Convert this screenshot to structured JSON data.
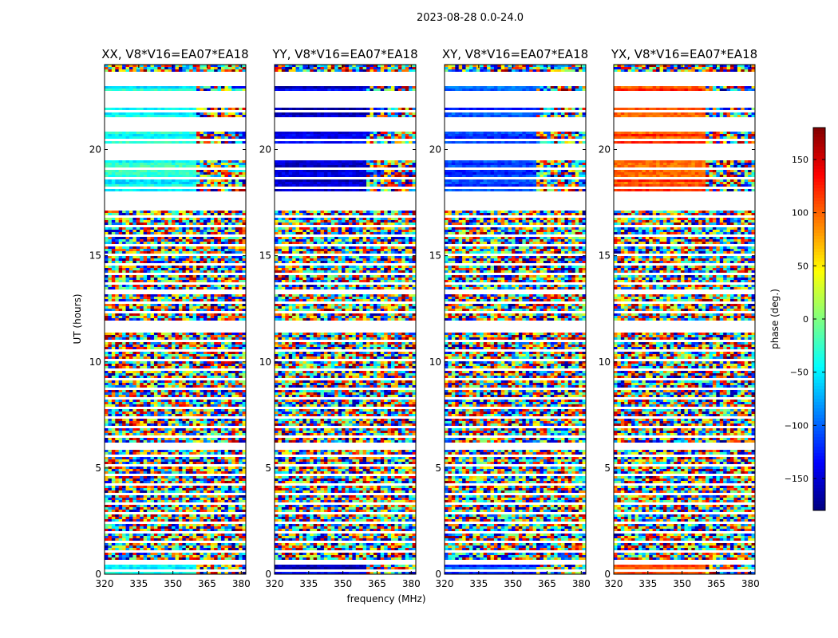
{
  "figure_title": "2023-08-28 0.0-24.0",
  "chart_data": {
    "type": "heatmap",
    "xlabel": "frequency (MHz)",
    "ylabel": "UT (hours)",
    "xlim": [
      320,
      382
    ],
    "ylim": [
      0,
      24
    ],
    "x_ticks": [
      320,
      335,
      350,
      365,
      380
    ],
    "y_ticks": [
      0,
      5,
      10,
      15,
      20
    ],
    "panels": [
      {
        "title": "XX, V8*V16=EA07*EA18",
        "calibrator_phase": -40
      },
      {
        "title": "YY, V8*V16=EA07*EA18",
        "calibrator_phase": -150
      },
      {
        "title": "XY, V8*V16=EA07*EA18",
        "calibrator_phase": -110
      },
      {
        "title": "YX, V8*V16=EA07*EA18",
        "calibrator_phase": 110
      }
    ],
    "colorbar": {
      "label": "phase (deg.)",
      "range": [
        -180,
        180
      ],
      "ticks": [
        -150,
        -100,
        -50,
        0,
        50,
        100,
        150
      ],
      "colormap": "jet"
    },
    "coherent_intervals_ut": [
      [
        0.0,
        0.4
      ],
      [
        18.0,
        23.0
      ]
    ],
    "flagged_gaps_ut": [
      [
        0.4,
        0.7
      ],
      [
        5.9,
        6.2
      ],
      [
        11.4,
        12.0
      ],
      [
        13.2,
        13.4
      ],
      [
        17.1,
        18.0
      ],
      [
        19.5,
        20.3
      ],
      [
        21.0,
        21.5
      ],
      [
        22.0,
        22.6
      ],
      [
        23.0,
        23.7
      ]
    ]
  }
}
